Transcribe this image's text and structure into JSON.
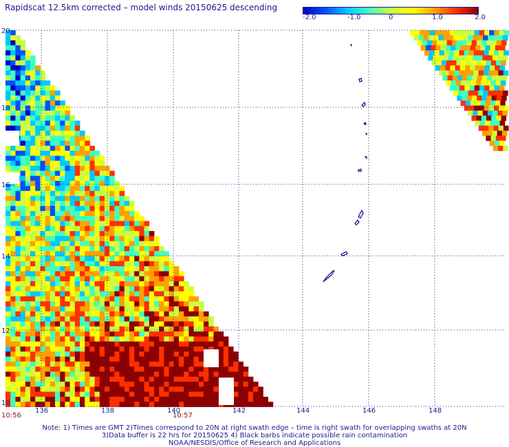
{
  "title": "Rapidscat 12.5km corrected – model winds 20150625 descending",
  "colorbar": {
    "tick_labels": [
      "-2.0",
      "-1.0",
      "0",
      "1.0",
      "2.0"
    ],
    "range": [
      -2.0,
      2.0
    ],
    "colors": [
      "#0000c8",
      "#0050ff",
      "#00c8ff",
      "#40ffc0",
      "#c8ff40",
      "#ffff00",
      "#ffa000",
      "#ff3000",
      "#8b0000"
    ]
  },
  "map": {
    "lon_labels": [
      "136",
      "138",
      "140",
      "142",
      "144",
      "146",
      "148"
    ],
    "lat_labels": [
      "20",
      "18",
      "16",
      "14",
      "12",
      "10"
    ],
    "lon_range": [
      135.0,
      150.0
    ],
    "lat_range": [
      10.0,
      20.0
    ]
  },
  "swath_times": {
    "left": "10:56",
    "right": "10:57"
  },
  "notes": [
    "Note: 1) Times are GMT 2)Times correspond to 20N at right swath edge – time is right swath for overlapping swaths at 20N",
    "3)Data buffer is 22 hrs for 20150625 4) Black barbs indicate possible rain contamination",
    "NOAA/NESDIS/Office of Research and Applications"
  ]
}
